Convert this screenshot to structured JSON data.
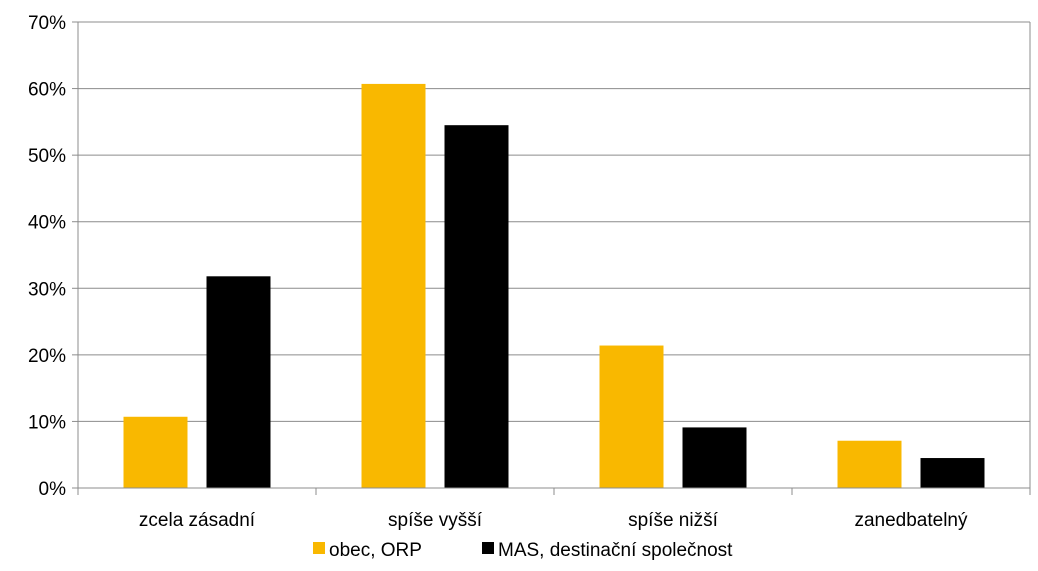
{
  "chart_data": {
    "type": "bar",
    "categories": [
      "zcela zásadní",
      "spíše vyšší",
      "spíše nižší",
      "zanedbatelný"
    ],
    "series": [
      {
        "name": "obec, ORP",
        "values": [
          10.7,
          60.7,
          21.4,
          7.1
        ],
        "color": "#f9b800"
      },
      {
        "name": "MAS, destinační společnost",
        "values": [
          31.8,
          54.5,
          9.1,
          4.5
        ],
        "color": "#000000"
      }
    ],
    "y_ticks": [
      "0%",
      "10%",
      "20%",
      "30%",
      "40%",
      "50%",
      "60%",
      "70%"
    ],
    "ylim": [
      0,
      70
    ],
    "grid": true,
    "legend_position": "bottom",
    "gridline_color": "#8c8c8c"
  }
}
